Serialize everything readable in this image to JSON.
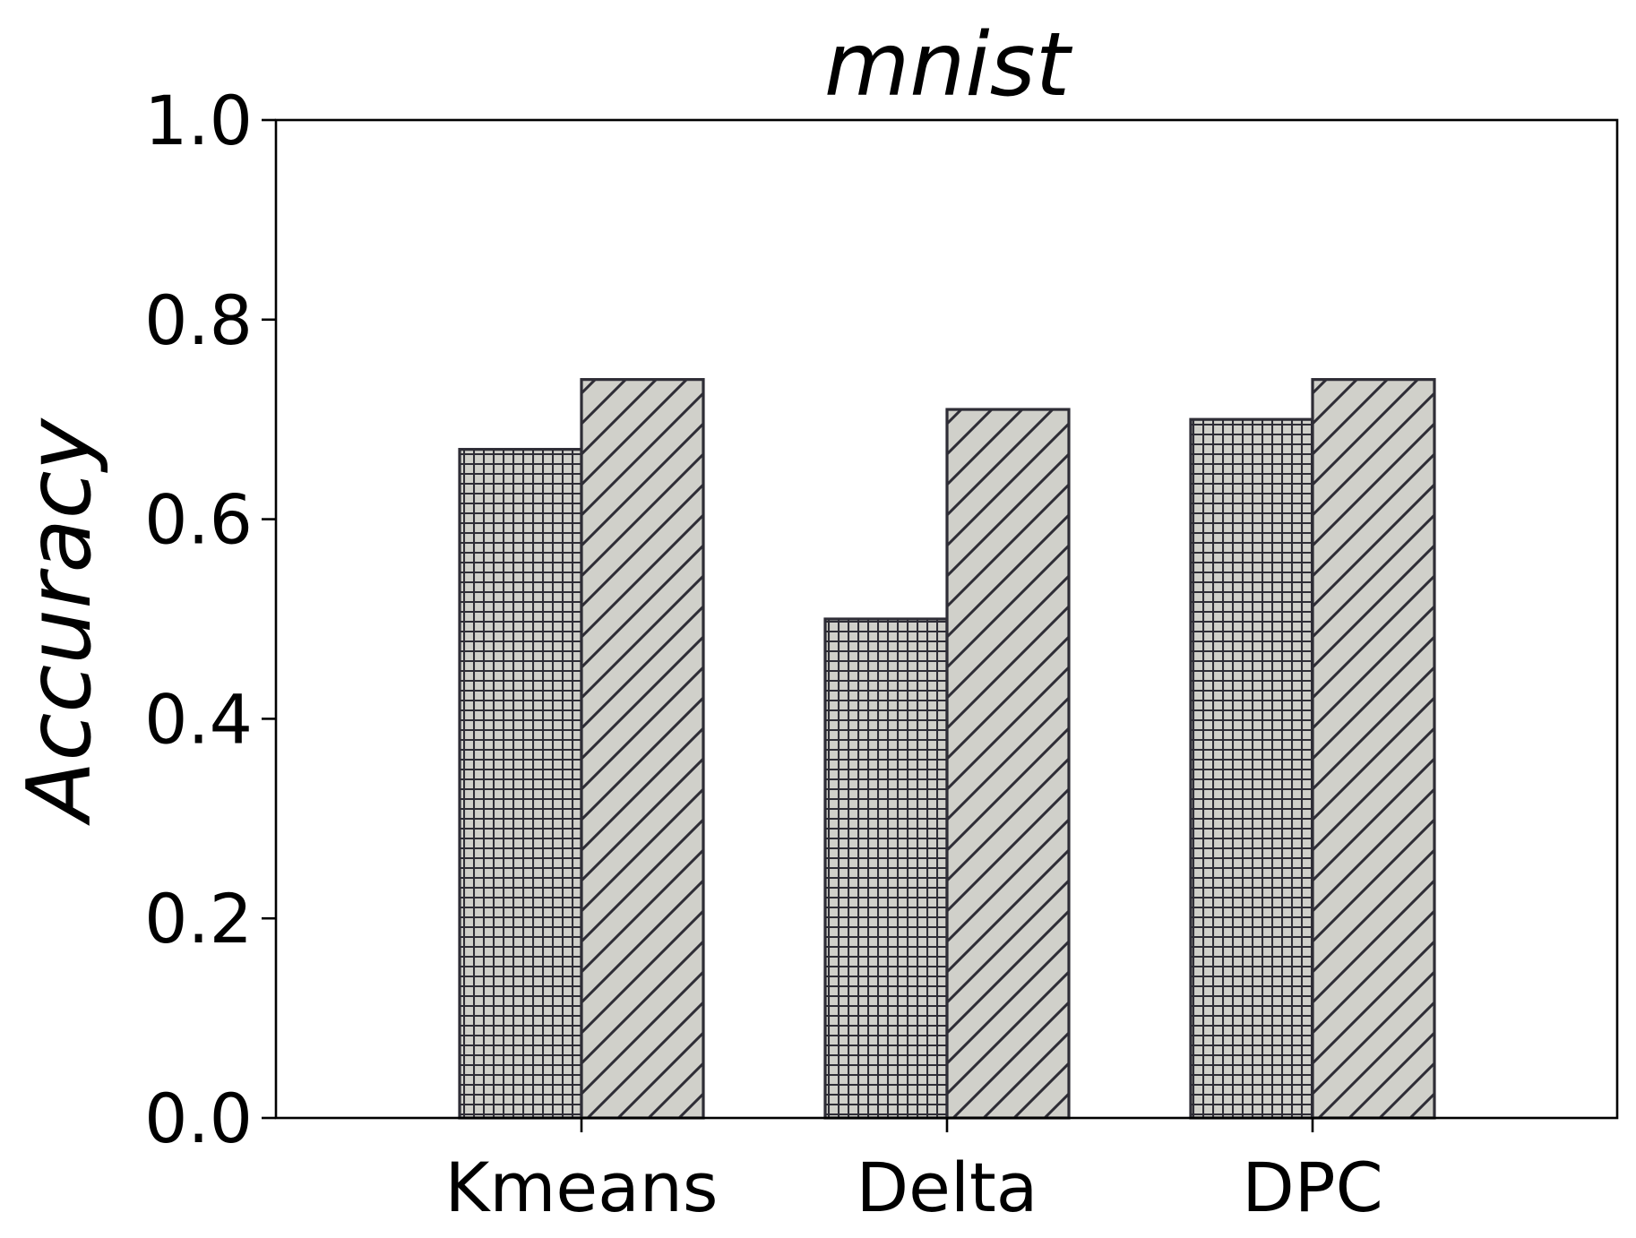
{
  "chart_data": {
    "type": "bar",
    "title": "mnist",
    "xlabel": "",
    "ylabel": "Accuracy",
    "categories": [
      "Kmeans",
      "Delta",
      "DPC"
    ],
    "series": [
      {
        "values": [
          0.67,
          0.5,
          0.7
        ],
        "hatch": "grid"
      },
      {
        "values": [
          0.74,
          0.71,
          0.74
        ],
        "hatch": "diagonal"
      }
    ],
    "ylim": [
      0.0,
      1.0
    ],
    "yticks": [
      "0.0",
      "0.2",
      "0.4",
      "0.6",
      "0.8",
      "1.0"
    ],
    "grid": false,
    "legend": "none",
    "colors": {
      "bar_fill": "#d0d0ca",
      "bar_edge": "#2e2d36",
      "axis": "#000000"
    }
  }
}
